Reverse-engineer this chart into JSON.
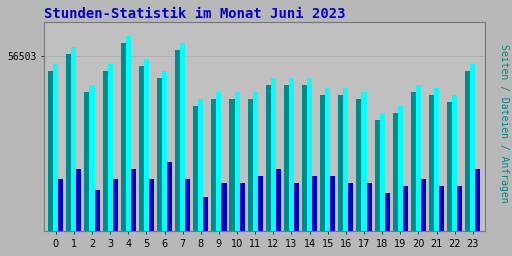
{
  "title": "Stunden-Statistik im Monat Juni 2023",
  "ylabel_rotated": "Seiten / Dateien / Anfragen",
  "ytick_label": "56503",
  "hours": [
    0,
    1,
    2,
    3,
    4,
    5,
    6,
    7,
    8,
    9,
    10,
    11,
    12,
    13,
    14,
    15,
    16,
    17,
    18,
    19,
    20,
    21,
    22,
    23
  ],
  "cyan_vals": [
    56480,
    56530,
    56420,
    56480,
    56560,
    56495,
    56460,
    56540,
    56380,
    56400,
    56400,
    56400,
    56440,
    56440,
    56440,
    56410,
    56410,
    56400,
    56340,
    56360,
    56420,
    56410,
    56390,
    56480
  ],
  "teal_vals": [
    56460,
    56510,
    56400,
    56460,
    56540,
    56475,
    56440,
    56520,
    56360,
    56380,
    56380,
    56380,
    56420,
    56420,
    56420,
    56390,
    56390,
    56380,
    56320,
    56340,
    56400,
    56390,
    56370,
    56460
  ],
  "blue_vals": [
    56150,
    56180,
    56120,
    56150,
    56180,
    56150,
    56200,
    56150,
    56100,
    56140,
    56140,
    56160,
    56180,
    56140,
    56160,
    56160,
    56140,
    56140,
    56110,
    56130,
    56150,
    56130,
    56130,
    56180
  ],
  "color_cyan": "#00ffff",
  "color_teal": "#008b8b",
  "color_blue": "#0000cc",
  "color_title": "#0000cc",
  "color_ylabel": "#008b8b",
  "bg_color": "#b8b8b8",
  "plot_bg": "#c0c0c0",
  "ymin": 56000,
  "ymax": 56600,
  "bar_width": 0.28,
  "title_fontsize": 10,
  "tick_fontsize": 7,
  "ylabel_fontsize": 7
}
